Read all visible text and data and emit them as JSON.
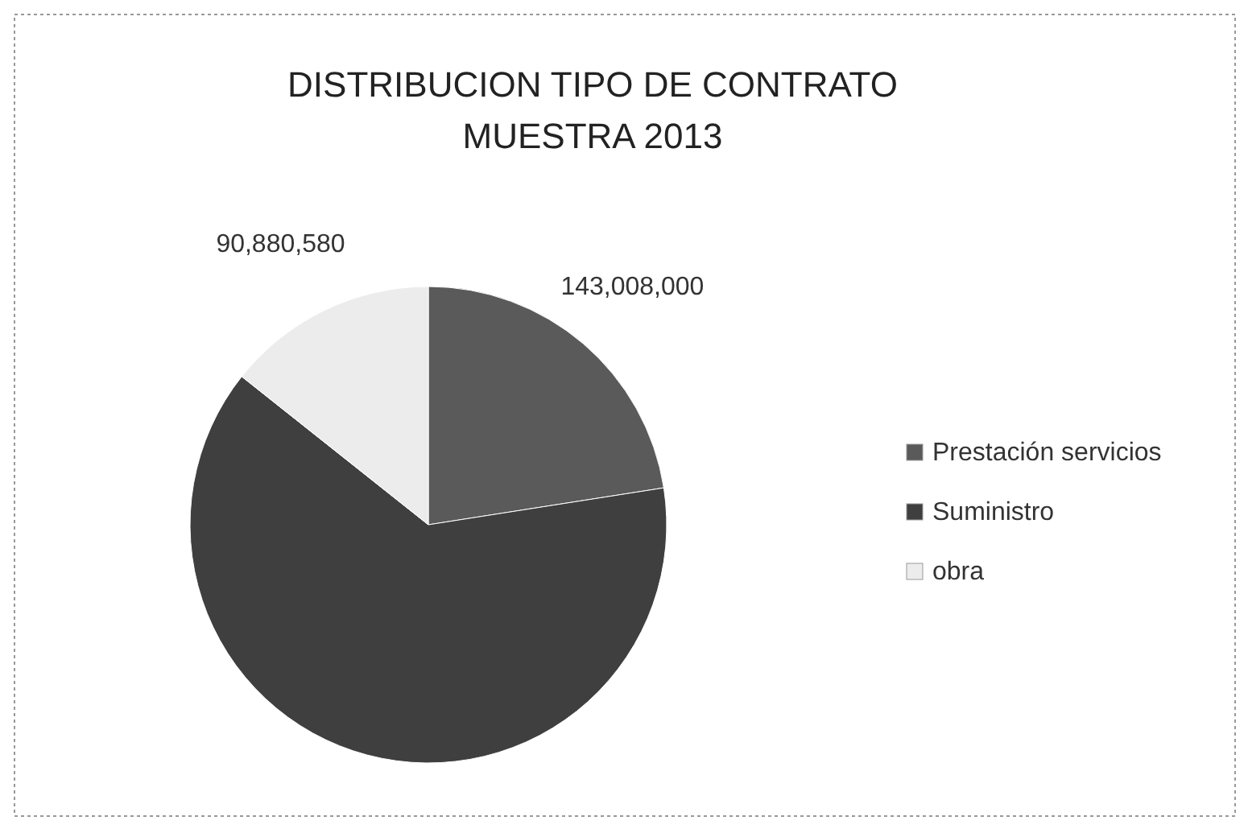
{
  "chart_data": {
    "type": "pie",
    "title": "DISTRIBUCION TIPO DE CONTRATO MUESTRA 2013",
    "categories": [
      "Prestación servicios",
      "Suministro",
      "obra"
    ],
    "values": [
      143008000,
      401000000,
      90880580
    ],
    "colors": [
      "#5a5a5a",
      "#3f3f3f",
      "#ececec"
    ],
    "value_labels": [
      "143,008,000",
      null,
      "90,880,580"
    ],
    "legend": "right"
  }
}
